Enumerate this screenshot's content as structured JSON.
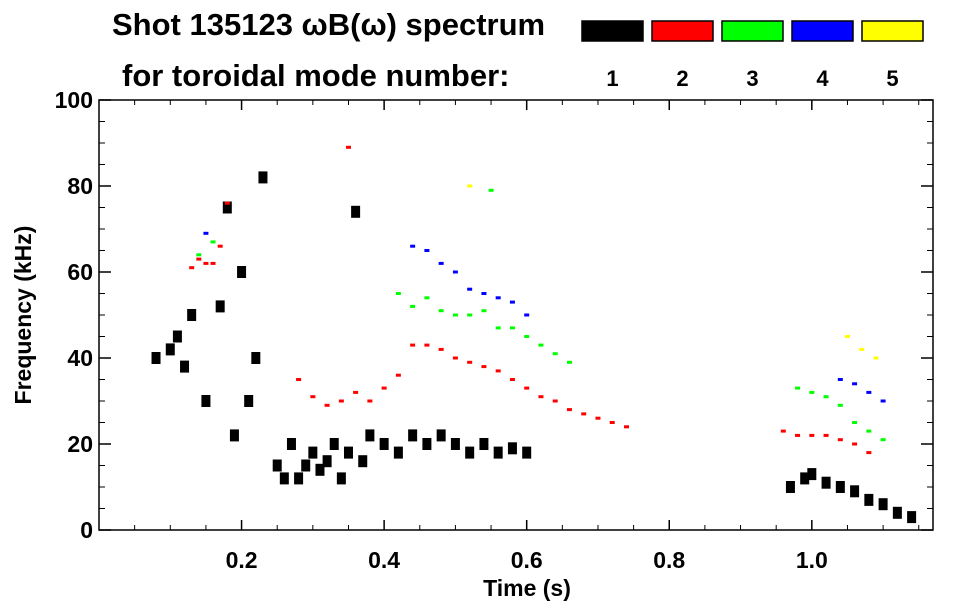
{
  "chart_data": {
    "type": "scatter",
    "title": "Shot 135123 ωB(ω) spectrum",
    "subtitle": "for toroidal mode number:",
    "xlabel": "Time (s)",
    "ylabel": "Frequency (kHz)",
    "xlim": [
      0.0,
      1.17
    ],
    "ylim": [
      0,
      100
    ],
    "x_ticks": [
      0.2,
      0.4,
      0.6,
      0.8,
      1.0
    ],
    "x_tick_labels": [
      "0.2",
      "0.4",
      "0.6",
      "0.8",
      "1.0"
    ],
    "y_ticks": [
      0,
      20,
      40,
      60,
      80,
      100
    ],
    "y_tick_labels": [
      "0",
      "20",
      "40",
      "60",
      "80",
      "100"
    ],
    "grid": false,
    "legend_position": "top",
    "series": [
      {
        "name": "1",
        "color": "#000000",
        "points": [
          [
            0.08,
            40
          ],
          [
            0.1,
            42
          ],
          [
            0.11,
            45
          ],
          [
            0.12,
            38
          ],
          [
            0.13,
            50
          ],
          [
            0.15,
            30
          ],
          [
            0.17,
            52
          ],
          [
            0.18,
            75
          ],
          [
            0.19,
            22
          ],
          [
            0.2,
            60
          ],
          [
            0.21,
            30
          ],
          [
            0.22,
            40
          ],
          [
            0.23,
            82
          ],
          [
            0.25,
            15
          ],
          [
            0.26,
            12
          ],
          [
            0.27,
            20
          ],
          [
            0.28,
            12
          ],
          [
            0.29,
            15
          ],
          [
            0.3,
            18
          ],
          [
            0.31,
            14
          ],
          [
            0.32,
            16
          ],
          [
            0.33,
            20
          ],
          [
            0.34,
            12
          ],
          [
            0.35,
            18
          ],
          [
            0.36,
            74
          ],
          [
            0.37,
            16
          ],
          [
            0.38,
            22
          ],
          [
            0.4,
            20
          ],
          [
            0.42,
            18
          ],
          [
            0.44,
            22
          ],
          [
            0.46,
            20
          ],
          [
            0.48,
            22
          ],
          [
            0.5,
            20
          ],
          [
            0.52,
            18
          ],
          [
            0.54,
            20
          ],
          [
            0.56,
            18
          ],
          [
            0.58,
            19
          ],
          [
            0.6,
            18
          ],
          [
            0.97,
            10
          ],
          [
            0.99,
            12
          ],
          [
            1.0,
            13
          ],
          [
            1.02,
            11
          ],
          [
            1.04,
            10
          ],
          [
            1.06,
            9
          ],
          [
            1.08,
            7
          ],
          [
            1.1,
            6
          ],
          [
            1.12,
            4
          ],
          [
            1.14,
            3
          ]
        ]
      },
      {
        "name": "2",
        "color": "#ff0000",
        "points": [
          [
            0.13,
            61
          ],
          [
            0.14,
            63
          ],
          [
            0.15,
            62
          ],
          [
            0.16,
            62
          ],
          [
            0.17,
            66
          ],
          [
            0.18,
            76
          ],
          [
            0.28,
            35
          ],
          [
            0.3,
            31
          ],
          [
            0.32,
            29
          ],
          [
            0.34,
            30
          ],
          [
            0.36,
            32
          ],
          [
            0.38,
            30
          ],
          [
            0.4,
            33
          ],
          [
            0.42,
            36
          ],
          [
            0.44,
            43
          ],
          [
            0.46,
            43
          ],
          [
            0.48,
            42
          ],
          [
            0.5,
            40
          ],
          [
            0.52,
            39
          ],
          [
            0.54,
            38
          ],
          [
            0.56,
            37
          ],
          [
            0.58,
            35
          ],
          [
            0.6,
            33
          ],
          [
            0.62,
            31
          ],
          [
            0.64,
            30
          ],
          [
            0.66,
            28
          ],
          [
            0.68,
            27
          ],
          [
            0.7,
            26
          ],
          [
            0.72,
            25
          ],
          [
            0.74,
            24
          ],
          [
            0.96,
            23
          ],
          [
            0.98,
            22
          ],
          [
            1.0,
            22
          ],
          [
            1.02,
            22
          ],
          [
            1.04,
            21
          ],
          [
            1.06,
            20
          ],
          [
            1.08,
            18
          ],
          [
            0.35,
            89
          ]
        ]
      },
      {
        "name": "3",
        "color": "#00ff00",
        "points": [
          [
            0.14,
            64
          ],
          [
            0.16,
            67
          ],
          [
            0.42,
            55
          ],
          [
            0.44,
            52
          ],
          [
            0.46,
            54
          ],
          [
            0.48,
            51
          ],
          [
            0.5,
            50
          ],
          [
            0.52,
            50
          ],
          [
            0.54,
            51
          ],
          [
            0.56,
            47
          ],
          [
            0.58,
            47
          ],
          [
            0.6,
            45
          ],
          [
            0.62,
            43
          ],
          [
            0.64,
            41
          ],
          [
            0.66,
            39
          ],
          [
            0.98,
            33
          ],
          [
            1.0,
            32
          ],
          [
            1.02,
            31
          ],
          [
            1.04,
            29
          ],
          [
            1.06,
            25
          ],
          [
            1.08,
            23
          ],
          [
            1.1,
            21
          ],
          [
            0.55,
            79
          ]
        ]
      },
      {
        "name": "4",
        "color": "#0000ff",
        "points": [
          [
            0.15,
            69
          ],
          [
            0.44,
            66
          ],
          [
            0.46,
            65
          ],
          [
            0.48,
            62
          ],
          [
            0.5,
            60
          ],
          [
            0.52,
            56
          ],
          [
            0.54,
            55
          ],
          [
            0.56,
            54
          ],
          [
            0.58,
            53
          ],
          [
            0.6,
            50
          ],
          [
            1.04,
            35
          ],
          [
            1.06,
            34
          ],
          [
            1.08,
            32
          ],
          [
            1.1,
            30
          ]
        ]
      },
      {
        "name": "5",
        "color": "#ffff00",
        "points": [
          [
            0.52,
            80
          ],
          [
            1.05,
            45
          ],
          [
            1.07,
            42
          ],
          [
            1.09,
            40
          ]
        ]
      }
    ]
  }
}
